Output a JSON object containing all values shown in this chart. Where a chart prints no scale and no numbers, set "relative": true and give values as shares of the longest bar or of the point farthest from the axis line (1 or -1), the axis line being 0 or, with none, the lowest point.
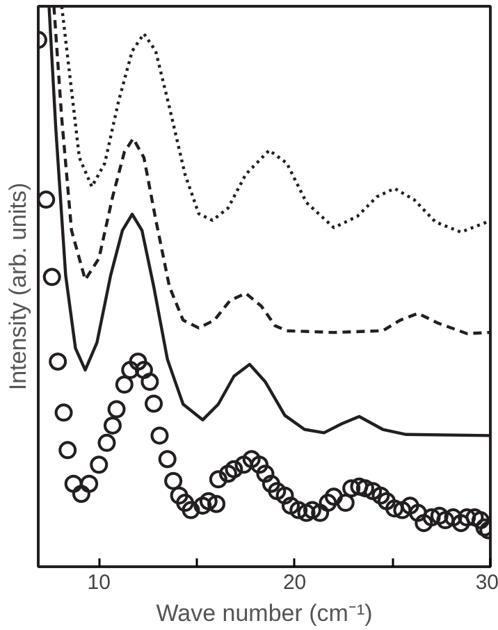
{
  "chart_data": {
    "type": "line",
    "relative": true,
    "xlabel": "Wave number (cm⁻¹)",
    "ylabel": "Intensity (arb. units)",
    "xlim": [
      6.9,
      30
    ],
    "xticks": [
      10,
      {
        "value": 15,
        "label": null
      },
      20,
      {
        "value": 25,
        "label": null
      },
      30
    ],
    "grid": false,
    "series": [
      {
        "line_style": "dotted",
        "color": "#231f20",
        "x": [
          8.1,
          8.6,
          9.0,
          9.64,
          10.3,
          11.0,
          11.7,
          12.3,
          12.9,
          13.6,
          14.4,
          15.1,
          15.8,
          16.6,
          17.5,
          18.7,
          19.6,
          20.6,
          22.0,
          23.2,
          24.2,
          25.1,
          26.1,
          27.2,
          28.5,
          29.9
        ],
        "values": [
          1.0,
          0.85,
          0.73,
          0.678,
          0.72,
          0.83,
          0.92,
          0.951,
          0.92,
          0.82,
          0.7,
          0.63,
          0.618,
          0.64,
          0.7,
          0.743,
          0.72,
          0.65,
          0.605,
          0.625,
          0.66,
          0.675,
          0.655,
          0.615,
          0.597,
          0.616
        ]
      },
      {
        "line_style": "dashed",
        "color": "#231f20",
        "x": [
          7.7,
          8.1,
          8.6,
          9.3,
          10.0,
          10.7,
          11.3,
          11.75,
          12.3,
          12.9,
          13.6,
          14.3,
          15.1,
          15.9,
          16.7,
          17.5,
          18.3,
          19.0,
          19.6,
          22.0,
          24.5,
          25.4,
          26.3,
          27.3,
          28.8,
          30.0
        ],
        "values": [
          1.0,
          0.8,
          0.6,
          0.512,
          0.55,
          0.66,
          0.74,
          0.764,
          0.73,
          0.62,
          0.5,
          0.44,
          0.426,
          0.44,
          0.475,
          0.488,
          0.465,
          0.43,
          0.421,
          0.418,
          0.421,
          0.44,
          0.452,
          0.435,
          0.416,
          0.418
        ]
      },
      {
        "line_style": "solid",
        "color": "#231f20",
        "x": [
          7.45,
          7.8,
          8.3,
          8.8,
          9.3,
          9.9,
          10.6,
          11.2,
          11.7,
          12.2,
          12.8,
          13.5,
          14.3,
          15.3,
          16.1,
          16.9,
          17.7,
          18.5,
          19.5,
          20.5,
          21.5,
          22.4,
          23.3,
          24.5,
          25.7,
          30.0
        ],
        "values": [
          1.0,
          0.78,
          0.52,
          0.39,
          0.351,
          0.4,
          0.52,
          0.6,
          0.629,
          0.6,
          0.5,
          0.37,
          0.29,
          0.262,
          0.29,
          0.34,
          0.361,
          0.33,
          0.27,
          0.245,
          0.239,
          0.255,
          0.268,
          0.245,
          0.236,
          0.234
        ]
      },
      {
        "type": "scatter",
        "marker": "circle",
        "color": "#231f20",
        "x": [
          6.9,
          7.3,
          7.6,
          7.9,
          8.2,
          8.4,
          8.7,
          9.1,
          9.5,
          10.0,
          10.4,
          10.7,
          10.9,
          11.3,
          11.6,
          12.0,
          12.3,
          12.6,
          12.8,
          13.1,
          13.5,
          13.8,
          14.1,
          14.4,
          14.7,
          15.3,
          15.6,
          16.0,
          16.1,
          16.6,
          16.9,
          17.4,
          17.8,
          18.2,
          18.5,
          18.8,
          19.1,
          19.5,
          19.8,
          20.2,
          20.6,
          20.9,
          21.3,
          21.7,
          22.0,
          22.6,
          22.9,
          23.3,
          23.6,
          24.0,
          24.4,
          24.7,
          25.1,
          25.5,
          25.9,
          26.3,
          26.6,
          27.0,
          27.4,
          27.7,
          28.1,
          28.5,
          28.8,
          29.2,
          29.5,
          29.7,
          29.9
        ],
        "values": [
          0.94,
          0.655,
          0.517,
          0.366,
          0.275,
          0.208,
          0.148,
          0.13,
          0.148,
          0.182,
          0.221,
          0.252,
          0.281,
          0.325,
          0.351,
          0.366,
          0.351,
          0.33,
          0.291,
          0.234,
          0.192,
          0.153,
          0.127,
          0.114,
          0.101,
          0.109,
          0.117,
          0.112,
          0.156,
          0.166,
          0.174,
          0.182,
          0.192,
          0.182,
          0.166,
          0.148,
          0.135,
          0.127,
          0.109,
          0.101,
          0.096,
          0.101,
          0.096,
          0.114,
          0.125,
          0.114,
          0.14,
          0.143,
          0.14,
          0.135,
          0.127,
          0.117,
          0.104,
          0.101,
          0.109,
          0.096,
          0.078,
          0.088,
          0.091,
          0.083,
          0.088,
          0.078,
          0.088,
          0.088,
          0.083,
          0.07,
          0.065
        ]
      }
    ]
  }
}
